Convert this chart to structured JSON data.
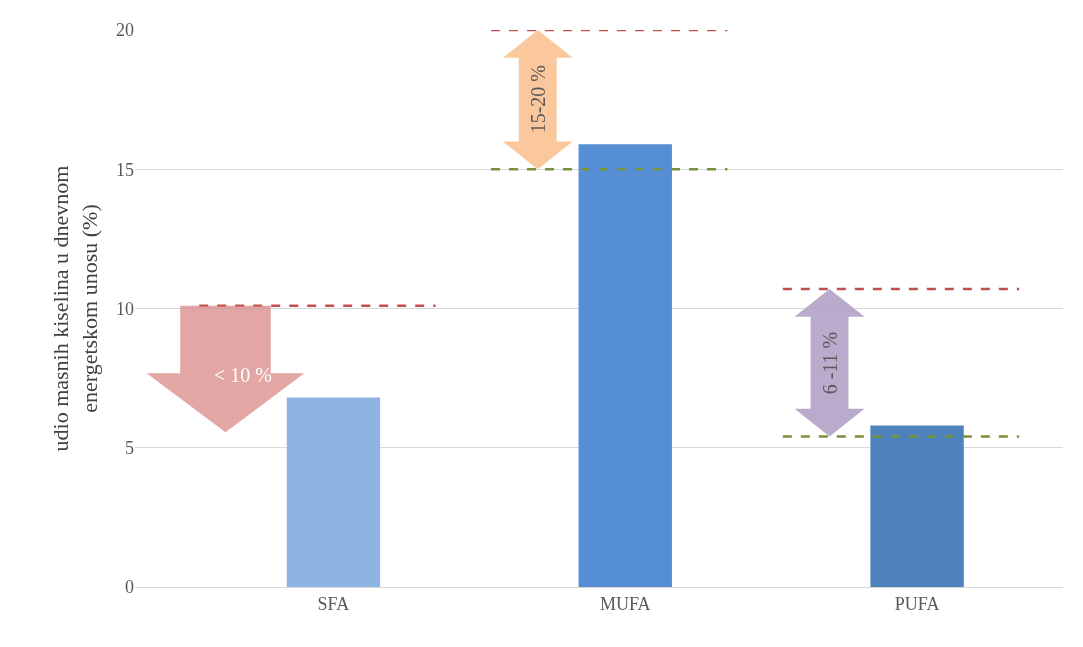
{
  "chart_data": {
    "type": "bar",
    "categories": [
      "SFA",
      "MUFA",
      "PUFA"
    ],
    "ylabel": "udio masnih kiselina u dnevnom energetskom unosu (%)",
    "ylim": [
      0,
      20
    ],
    "yticks": [
      0,
      5,
      10,
      15,
      20
    ],
    "grid": "y",
    "series": [
      {
        "colors": [
          "#8eb4e3",
          "#558ed5",
          "#4f81bd"
        ],
        "values": [
          6.8,
          15.9,
          5.8
        ]
      }
    ],
    "ref_lines": [
      {
        "axis": "y",
        "value": 10.1,
        "color": "#c0504d",
        "line_style": "dashed"
      },
      {
        "axis": "y",
        "value": 20,
        "color": "#c0504d",
        "line_style": "dashed"
      },
      {
        "axis": "y",
        "value": 15,
        "color": "#77933c",
        "line_style": "dashed"
      },
      {
        "axis": "y",
        "value": 10.7,
        "color": "#c0504d",
        "line_style": "dashed"
      },
      {
        "axis": "y",
        "value": 5.4,
        "color": "#77933c",
        "line_style": "dashed"
      }
    ],
    "annotations": [
      "< 10 %",
      "15-20 %",
      "6 -11 %"
    ]
  }
}
